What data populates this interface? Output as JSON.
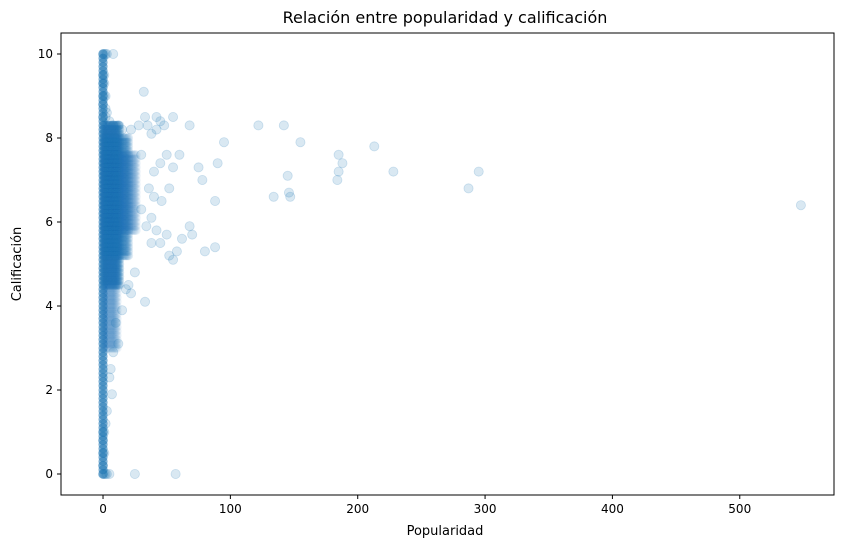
{
  "chart_data": {
    "type": "scatter",
    "title": "Relación entre popularidad y calificación",
    "xlabel": "Popularidad",
    "ylabel": "Calificación",
    "xlim": [
      -33,
      574
    ],
    "ylim": [
      -0.5,
      10.5
    ],
    "xticks": [
      0,
      100,
      200,
      300,
      400,
      500
    ],
    "yticks": [
      0,
      2,
      4,
      6,
      8,
      10
    ],
    "grid": false,
    "marker_color": "#1f77b4",
    "marker_alpha": 0.12,
    "series": [
      {
        "points": [
          [
            0,
            10
          ],
          [
            1,
            10
          ],
          [
            2,
            10
          ],
          [
            3,
            10
          ],
          [
            8,
            10
          ],
          [
            0,
            9.5
          ],
          [
            1,
            9.5
          ],
          [
            0,
            9.3
          ],
          [
            1,
            9.3
          ],
          [
            0,
            9
          ],
          [
            1,
            9
          ],
          [
            2,
            9
          ],
          [
            0,
            8.8
          ],
          [
            2,
            8.7
          ],
          [
            3,
            8.6
          ],
          [
            0,
            8.5
          ],
          [
            2,
            8.5
          ],
          [
            5,
            8.4
          ],
          [
            8,
            8.3
          ],
          [
            12,
            8.3
          ],
          [
            15,
            8.2
          ],
          [
            22,
            8.2
          ],
          [
            28,
            8.3
          ],
          [
            33,
            8.5
          ],
          [
            35,
            8.3
          ],
          [
            38,
            8.1
          ],
          [
            42,
            8.2
          ],
          [
            45,
            8.4
          ],
          [
            48,
            8.3
          ],
          [
            55,
            8.5
          ],
          [
            68,
            8.3
          ],
          [
            32,
            9.1
          ],
          [
            42,
            8.5
          ],
          [
            50,
            7.6
          ],
          [
            30,
            7.6
          ],
          [
            40,
            7.2
          ],
          [
            45,
            7.4
          ],
          [
            55,
            7.3
          ],
          [
            60,
            7.6
          ],
          [
            75,
            7.3
          ],
          [
            78,
            7.0
          ],
          [
            90,
            7.4
          ],
          [
            95,
            7.9
          ],
          [
            88,
            6.5
          ],
          [
            36,
            6.8
          ],
          [
            40,
            6.6
          ],
          [
            46,
            6.5
          ],
          [
            52,
            6.8
          ],
          [
            30,
            6.3
          ],
          [
            38,
            6.1
          ],
          [
            42,
            5.8
          ],
          [
            50,
            5.7
          ],
          [
            62,
            5.6
          ],
          [
            70,
            5.7
          ],
          [
            68,
            5.9
          ],
          [
            80,
            5.3
          ],
          [
            88,
            5.4
          ],
          [
            58,
            5.3
          ],
          [
            52,
            5.2
          ],
          [
            55,
            5.1
          ],
          [
            45,
            5.5
          ],
          [
            38,
            5.5
          ],
          [
            34,
            5.9
          ],
          [
            25,
            4.8
          ],
          [
            20,
            4.5
          ],
          [
            18,
            4.4
          ],
          [
            22,
            4.3
          ],
          [
            33,
            4.1
          ],
          [
            15,
            3.9
          ],
          [
            10,
            3.6
          ],
          [
            12,
            3.1
          ],
          [
            8,
            2.9
          ],
          [
            6,
            2.5
          ],
          [
            5,
            2.3
          ],
          [
            7,
            1.9
          ],
          [
            3,
            1.5
          ],
          [
            2,
            1.2
          ],
          [
            0,
            1.0
          ],
          [
            1,
            1.0
          ],
          [
            0,
            0.8
          ],
          [
            0,
            0.5
          ],
          [
            1,
            0.5
          ],
          [
            0,
            0.2
          ],
          [
            0,
            0
          ],
          [
            1,
            0
          ],
          [
            2,
            0
          ],
          [
            3,
            0
          ],
          [
            5,
            0
          ],
          [
            25,
            0
          ],
          [
            57,
            0
          ],
          [
            122,
            8.3
          ],
          [
            142,
            8.3
          ],
          [
            155,
            7.9
          ],
          [
            213,
            7.8
          ],
          [
            185,
            7.6
          ],
          [
            188,
            7.4
          ],
          [
            185,
            7.2
          ],
          [
            184,
            7.0
          ],
          [
            145,
            7.1
          ],
          [
            146,
            6.7
          ],
          [
            147,
            6.6
          ],
          [
            134,
            6.6
          ],
          [
            228,
            7.2
          ],
          [
            295,
            7.2
          ],
          [
            287,
            6.8
          ],
          [
            548,
            6.4
          ]
        ]
      }
    ]
  }
}
